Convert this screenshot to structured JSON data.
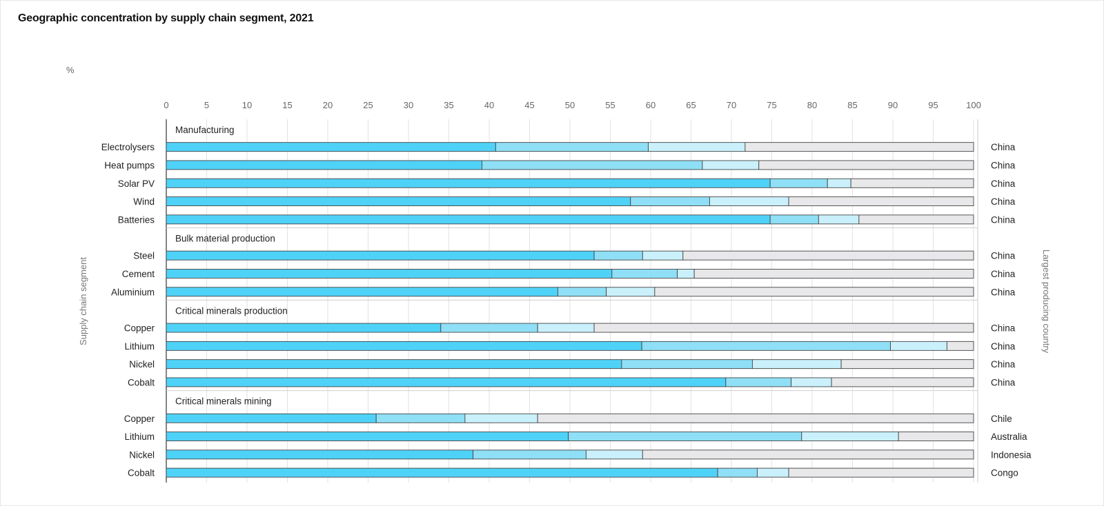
{
  "title": "Geographic concentration by supply chain segment, 2021",
  "colors": {
    "share_1": "#4fd2f8",
    "share_2": "#8fdff6",
    "share_3": "#c9f0fb",
    "rest": "#e8e8ea",
    "outline": "#444444",
    "grid": "#e2e2e2"
  },
  "chart_data": {
    "type": "bar",
    "orientation": "horizontal",
    "stacked": true,
    "unit_label": "%",
    "xlim": [
      0,
      100
    ],
    "x_ticks": [
      0,
      5,
      10,
      15,
      20,
      25,
      30,
      35,
      40,
      45,
      50,
      55,
      60,
      65,
      70,
      75,
      80,
      85,
      90,
      95,
      100
    ],
    "ylabel": "Supply chain segment",
    "y2label": "Largest producing country",
    "grid": true,
    "groups": [
      {
        "name": "Manufacturing",
        "rows": [
          {
            "label": "Electrolysers",
            "segments": [
              40.8,
              18.9,
              12.0,
              28.3
            ],
            "country": "China"
          },
          {
            "label": "Heat pumps",
            "segments": [
              39.1,
              27.3,
              7.0,
              26.6
            ],
            "country": "China"
          },
          {
            "label": "Solar PV",
            "segments": [
              74.8,
              7.1,
              2.9,
              15.2
            ],
            "country": "China"
          },
          {
            "label": "Wind",
            "segments": [
              57.5,
              9.8,
              9.8,
              22.9
            ],
            "country": "China"
          },
          {
            "label": "Batteries",
            "segments": [
              74.8,
              6.0,
              5.0,
              14.2
            ],
            "country": "China"
          }
        ]
      },
      {
        "name": "Bulk material production",
        "rows": [
          {
            "label": "Steel",
            "segments": [
              53.0,
              6.0,
              5.0,
              36.0
            ],
            "country": "China"
          },
          {
            "label": "Cement",
            "segments": [
              55.2,
              8.1,
              2.1,
              34.6
            ],
            "country": "China"
          },
          {
            "label": "Aluminium",
            "segments": [
              48.5,
              6.0,
              6.0,
              39.5
            ],
            "country": "China"
          }
        ]
      },
      {
        "name": "Critical minerals production",
        "rows": [
          {
            "label": "Copper",
            "segments": [
              34.0,
              12.0,
              7.0,
              47.0
            ],
            "country": "China"
          },
          {
            "label": "Lithium",
            "segments": [
              58.9,
              30.8,
              7.0,
              3.3
            ],
            "country": "China"
          },
          {
            "label": "Nickel",
            "segments": [
              56.4,
              16.2,
              11.0,
              16.4
            ],
            "country": "China"
          },
          {
            "label": "Cobalt",
            "segments": [
              69.3,
              8.1,
              5.0,
              17.6
            ],
            "country": "China"
          }
        ]
      },
      {
        "name": "Critical minerals mining",
        "rows": [
          {
            "label": "Copper",
            "segments": [
              26.0,
              11.0,
              9.0,
              54.0
            ],
            "country": "Chile"
          },
          {
            "label": "Lithium",
            "segments": [
              49.8,
              28.9,
              12.0,
              9.3
            ],
            "country": "Australia"
          },
          {
            "label": "Nickel",
            "segments": [
              38.0,
              14.0,
              7.0,
              41.0
            ],
            "country": "Indonesia"
          },
          {
            "label": "Cobalt",
            "segments": [
              68.3,
              4.9,
              3.9,
              22.9
            ],
            "country": "Congo"
          }
        ]
      }
    ]
  }
}
